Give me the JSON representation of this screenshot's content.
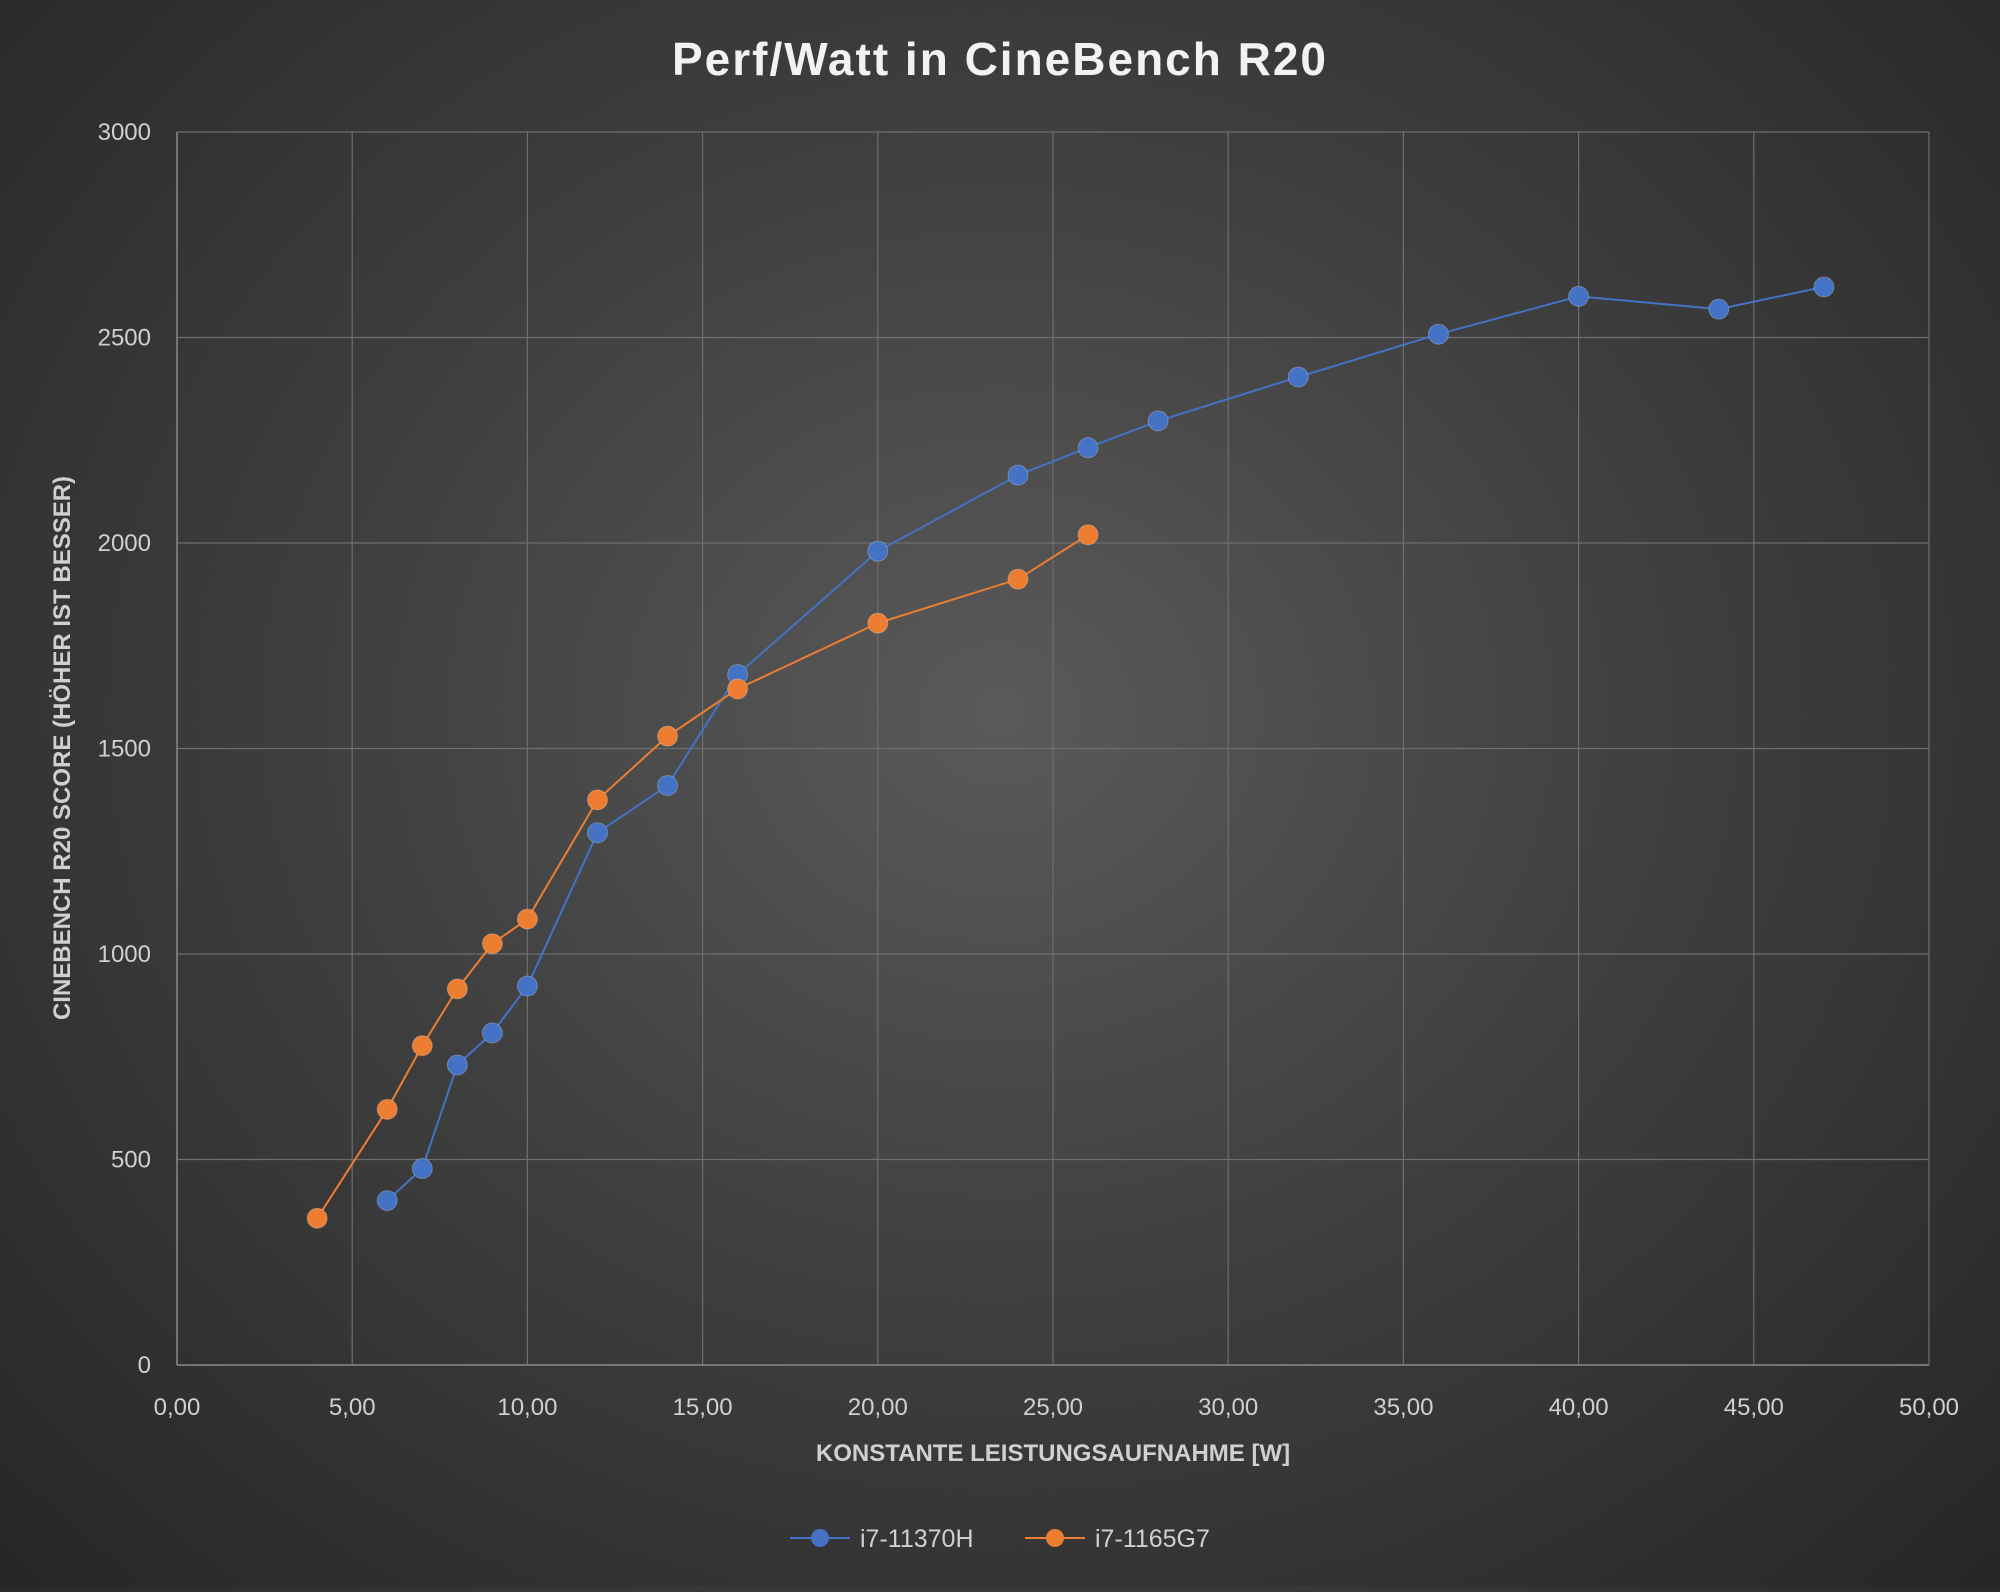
{
  "chart_data": {
    "type": "scatter",
    "title": "Perf/Watt in CineBench R20",
    "xlabel": "KONSTANTE LEISTUNGSAUFNAHME [W]",
    "ylabel": "CINEBENCH R20 SCORE (HÖHER IST BESSER)",
    "xlim": [
      0,
      50
    ],
    "ylim": [
      0,
      3000
    ],
    "x_ticks": [
      "0,00",
      "5,00",
      "10,00",
      "15,00",
      "20,00",
      "25,00",
      "30,00",
      "35,00",
      "40,00",
      "45,00",
      "50,00"
    ],
    "y_ticks": [
      "0",
      "500",
      "1000",
      "1500",
      "2000",
      "2500",
      "3000"
    ],
    "grid": true,
    "legend_position": "bottom-center",
    "series": [
      {
        "name": "i7-11370H",
        "color": "#4472C4",
        "x": [
          6,
          7,
          8,
          9,
          10,
          12,
          14,
          16,
          20,
          24,
          26,
          28,
          32,
          36,
          40,
          44,
          47
        ],
        "y": [
          400,
          478,
          730,
          808,
          922,
          1295,
          1410,
          1680,
          1980,
          2165,
          2232,
          2297,
          2404,
          2508,
          2600,
          2569,
          2623
        ]
      },
      {
        "name": "i7-1165G7",
        "color": "#ED7D31",
        "x": [
          4,
          6,
          7,
          8,
          9,
          10,
          12,
          14,
          16,
          20,
          24,
          26
        ],
        "y": [
          357,
          622,
          777,
          915,
          1025,
          1085,
          1375,
          1530,
          1645,
          1805,
          1912,
          2020
        ]
      }
    ]
  }
}
